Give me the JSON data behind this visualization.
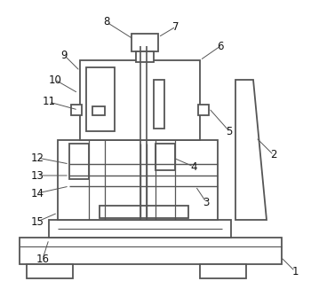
{
  "background_color": "#ffffff",
  "line_color": "#555555",
  "line_width": 1.3,
  "font_size": 8.5
}
